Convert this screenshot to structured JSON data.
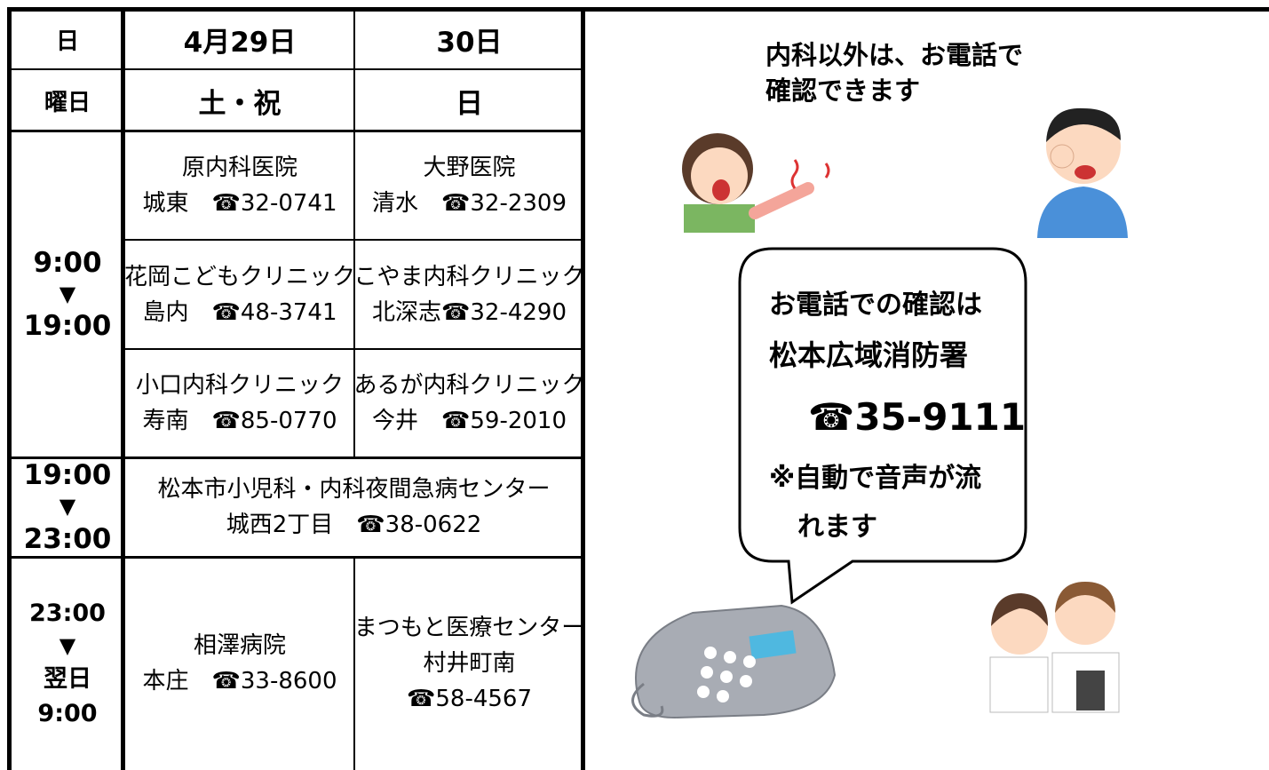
{
  "table": {
    "header_rows": [
      [
        "日",
        "4月29日",
        "30日"
      ],
      [
        "曜日",
        "土・祝",
        "日"
      ]
    ],
    "time_slots": [
      [
        "9:00",
        "▼",
        "19:00"
      ],
      [
        "19:00",
        "▼",
        "23:00"
      ],
      [
        "23:00",
        "▼",
        "翌日",
        "9:00"
      ]
    ],
    "clinics": [
      [
        [
          "原内科医院",
          "城東　☎32-0741"
        ],
        [
          "大野医院",
          "清水　☎32-2309"
        ]
      ],
      [
        [
          "花岡こどもクリニック",
          "島内　☎48-3741"
        ],
        [
          "こやま内科クリニック",
          "北深志☎32-4290"
        ]
      ],
      [
        [
          "小口内科クリニック",
          "寿南　☎85-0770"
        ],
        [
          "あるが内科クリニック",
          "今井　☎59-2010"
        ]
      ],
      [
        [
          "松本市小児科・内科夜間急病センター",
          "城西2丁目　☎38-0622"
        ]
      ],
      [
        [
          "相澤病院",
          "本庄　☎33-8600"
        ],
        [
          "まつもと医療センター",
          "村井町南",
          "☎58-4567"
        ]
      ]
    ]
  },
  "note": [
    "内科以外は、お電話で",
    "確認できます"
  ],
  "bubble": [
    "お電話での確認は",
    "松本広域消防署",
    "☎35-9111",
    "※自動で音声が流",
    "れます"
  ]
}
